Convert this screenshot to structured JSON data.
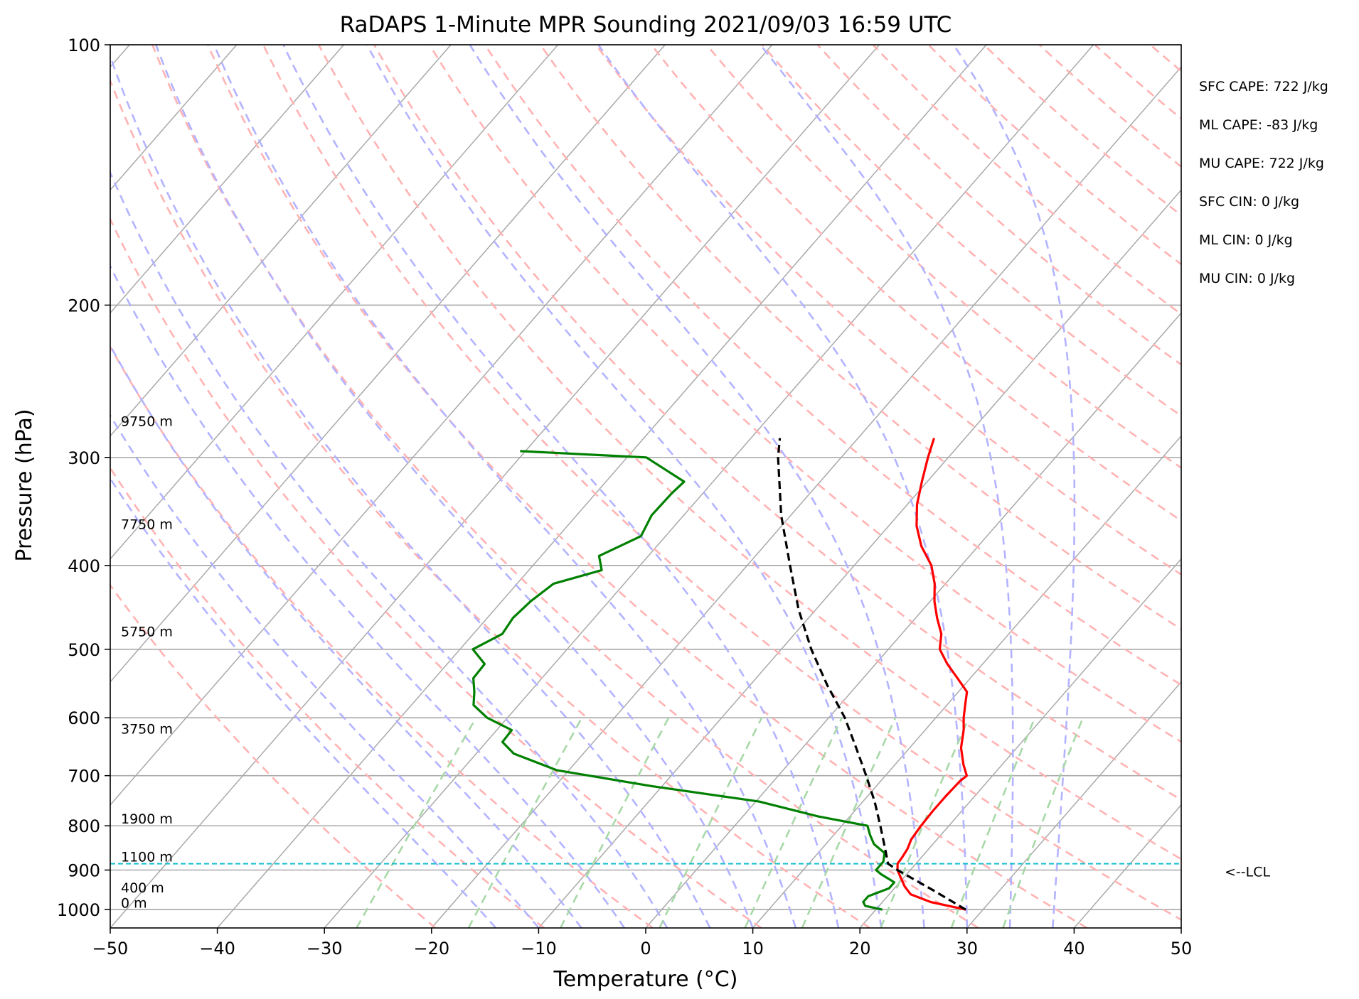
{
  "chart_data": {
    "type": "line",
    "title": "RaDAPS 1-Minute MPR Sounding 2021/09/03 16:59 UTC",
    "xlabel": "Temperature (°C)",
    "ylabel": "Pressure (hPa)",
    "xlim": [
      -50,
      50
    ],
    "ylim": [
      1050,
      100
    ],
    "y_scale": "log",
    "x_ticks": [
      -50,
      -40,
      -30,
      -20,
      -10,
      0,
      10,
      20,
      30,
      40,
      50
    ],
    "x_tick_labels": [
      "−50",
      "−40",
      "−30",
      "−20",
      "−10",
      "0",
      "10",
      "20",
      "30",
      "40",
      "50"
    ],
    "y_ticks": [
      100,
      200,
      300,
      400,
      500,
      600,
      700,
      800,
      900,
      1000
    ],
    "y_tick_labels": [
      "100",
      "200",
      "300",
      "400",
      "500",
      "600",
      "700",
      "800",
      "900",
      "1000"
    ],
    "skew_isotherm_spacing": 10,
    "dry_adiabat_thetas_K": [
      250,
      260,
      270,
      280,
      290,
      300,
      310,
      320,
      330,
      340,
      350,
      360,
      370,
      380,
      390,
      400,
      410,
      420,
      430,
      440,
      450,
      460,
      470,
      480,
      490,
      500,
      510,
      520,
      530
    ],
    "moist_adiabat_start_temps_C": [
      -14,
      -10,
      -6,
      -2,
      2,
      6,
      10,
      14,
      18,
      22,
      26,
      30,
      34,
      38
    ],
    "mixing_ratio_lines_gkg": [
      0.4,
      1,
      2,
      4,
      7,
      10,
      16,
      24,
      32
    ],
    "series": [
      {
        "color": "#ff0000",
        "pressure": [
          1000,
          980,
          960,
          940,
          920,
          900,
          885,
          870,
          850,
          830,
          800,
          770,
          740,
          710,
          700,
          680,
          650,
          620,
          600,
          580,
          560,
          540,
          520,
          500,
          480,
          460,
          440,
          420,
          400,
          380,
          360,
          340,
          320,
          300,
          285
        ],
        "temperature": [
          28.4,
          24.5,
          22.0,
          20.8,
          19.8,
          18.8,
          18.3,
          18.2,
          18.0,
          17.6,
          17.4,
          17.3,
          17.3,
          17.4,
          17.6,
          16.4,
          14.8,
          13.6,
          12.6,
          11.7,
          10.8,
          8.8,
          6.7,
          4.8,
          3.7,
          2.0,
          0.4,
          -1.0,
          -2.8,
          -5.3,
          -7.4,
          -9.1,
          -10.5,
          -11.9,
          -12.9
        ]
      },
      {
        "color": "#008000",
        "pressure": [
          1000,
          990,
          980,
          965,
          945,
          930,
          910,
          900,
          880,
          860,
          840,
          820,
          800,
          780,
          750,
          720,
          690,
          660,
          640,
          620,
          600,
          580,
          560,
          540,
          520,
          500,
          480,
          460,
          440,
          420,
          405,
          390,
          370,
          350,
          330,
          320,
          300,
          295
        ],
        "temperature": [
          20.6,
          18.7,
          18.2,
          18.2,
          19.5,
          19.5,
          17.6,
          16.8,
          16.8,
          16.2,
          14.5,
          13.4,
          12.4,
          7.0,
          0.3,
          -10.9,
          -21.1,
          -26.5,
          -28.5,
          -28.6,
          -31.9,
          -34.2,
          -35.2,
          -36.4,
          -36.5,
          -38.8,
          -37.3,
          -37.6,
          -37.3,
          -36.6,
          -33.2,
          -34.6,
          -32.3,
          -33.0,
          -32.9,
          -32.7,
          -38.2,
          -50.5
        ]
      },
      {
        "color": "#000000",
        "pressure": [
          1000,
          950,
          900,
          885,
          850,
          800,
          750,
          700,
          650,
          600,
          550,
          500,
          450,
          400,
          350,
          300,
          285
        ],
        "temperature": [
          28.4,
          23.8,
          18.8,
          17.4,
          15.9,
          13.6,
          11.1,
          8.2,
          5.0,
          1.5,
          -2.8,
          -7.2,
          -11.6,
          -16.0,
          -20.9,
          -25.9,
          -27.3
        ]
      }
    ],
    "lcl_pressure": 885,
    "lcl_label": "<--LCL",
    "height_labels": [
      {
        "text": "9750 m",
        "pressure": 276
      },
      {
        "text": "7750 m",
        "pressure": 363
      },
      {
        "text": "5750 m",
        "pressure": 483
      },
      {
        "text": "3750 m",
        "pressure": 626
      },
      {
        "text": "1900 m",
        "pressure": 795
      },
      {
        "text": "1100 m",
        "pressure": 880
      },
      {
        "text": "400 m",
        "pressure": 955
      },
      {
        "text": "0 m",
        "pressure": 995
      }
    ],
    "stats": [
      "SFC CAPE: 722 J/kg",
      "ML CAPE: -83 J/kg",
      "MU CAPE: 722 J/kg",
      "SFC CIN: 0 J/kg",
      "ML CIN: 0 J/kg",
      "MU CIN: 0 J/kg"
    ],
    "colors": {
      "isotherm": "#a9a9a9",
      "isobar": "#a9a9a9",
      "dry_adiabat": "#ffb3b3",
      "moist_adiabat": "#b3b3ff",
      "mixing_ratio": "#a8d8a8",
      "lcl": "#17becf"
    }
  }
}
